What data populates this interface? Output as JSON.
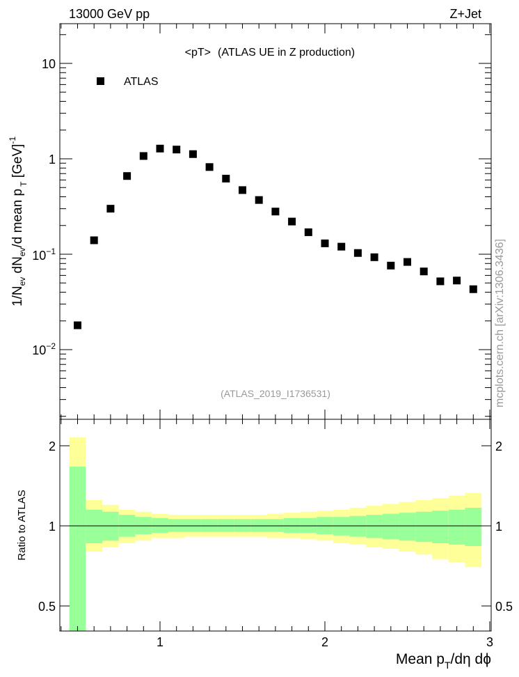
{
  "header": {
    "left": "13000 GeV pp",
    "right": "Z+Jet"
  },
  "main_plot": {
    "title_part1": "<pT>",
    "title_part2": "(ATLAS UE in Z production)",
    "ylabel": "1/N_ev dN_ev/d mean p_T [GeV]^-1",
    "analysis_tag": "(ATLAS_2019_I1736531)",
    "legend_label": "ATLAS",
    "y_tick_labels": [
      "10",
      "1",
      "10^-1",
      "10^-2"
    ]
  },
  "ratio_plot": {
    "ylabel": "Ratio to ATLAS",
    "y_tick_labels": [
      "2",
      "1",
      "0.5"
    ],
    "x_tick_labels": [
      "1",
      "2",
      "3"
    ],
    "xlabel": "Mean p_T/dη dϕ"
  },
  "watermark": "mcplots.cern.ch [arXiv:1306.3436]",
  "colors": {
    "marker": "#000000",
    "band_inner": "#99ff99",
    "band_outer": "#ffff99",
    "text_grey": "#999999"
  },
  "chart_data": {
    "type": "scatter",
    "title": "<pT> (ATLAS UE in Z production)",
    "xlabel": "Mean p_T/dη dϕ",
    "ylabel": "1/N_ev dN_ev/d mean p_T [GeV]^-1",
    "yscale": "log",
    "xlim": [
      0.4,
      3.0
    ],
    "ylim": [
      0.0015,
      25
    ],
    "series": [
      {
        "name": "ATLAS",
        "x": [
          0.5,
          0.6,
          0.7,
          0.8,
          0.9,
          1.0,
          1.1,
          1.2,
          1.3,
          1.4,
          1.5,
          1.6,
          1.7,
          1.8,
          1.9,
          2.0,
          2.1,
          2.2,
          2.3,
          2.4,
          2.5,
          2.6,
          2.7,
          2.8,
          2.9
        ],
        "y": [
          0.018,
          0.14,
          0.3,
          0.66,
          1.07,
          1.28,
          1.25,
          1.12,
          0.82,
          0.62,
          0.47,
          0.37,
          0.28,
          0.22,
          0.17,
          0.13,
          0.12,
          0.103,
          0.093,
          0.076,
          0.083,
          0.066,
          0.052,
          0.053,
          0.043
        ]
      }
    ],
    "ratio": {
      "ylabel": "Ratio to ATLAS",
      "yscale": "log",
      "ylim": [
        0.4,
        2.4
      ],
      "bin_edges": [
        0.45,
        0.55,
        0.65,
        0.75,
        0.85,
        0.95,
        1.05,
        1.15,
        1.25,
        1.35,
        1.45,
        1.55,
        1.65,
        1.75,
        1.85,
        1.95,
        2.05,
        2.15,
        2.25,
        2.35,
        2.45,
        2.55,
        2.65,
        2.75,
        2.85,
        2.95
      ],
      "inner_band": {
        "lower": [
          0.3,
          0.86,
          0.88,
          0.91,
          0.93,
          0.94,
          0.95,
          0.95,
          0.95,
          0.95,
          0.95,
          0.95,
          0.95,
          0.94,
          0.94,
          0.93,
          0.92,
          0.91,
          0.9,
          0.89,
          0.88,
          0.87,
          0.86,
          0.85,
          0.84
        ],
        "upper": [
          1.67,
          1.15,
          1.13,
          1.1,
          1.08,
          1.07,
          1.06,
          1.06,
          1.06,
          1.06,
          1.06,
          1.06,
          1.06,
          1.07,
          1.07,
          1.08,
          1.08,
          1.09,
          1.1,
          1.11,
          1.12,
          1.13,
          1.14,
          1.15,
          1.17
        ]
      },
      "outer_band": {
        "lower": [
          0.3,
          0.8,
          0.83,
          0.86,
          0.88,
          0.9,
          0.9,
          0.91,
          0.91,
          0.91,
          0.91,
          0.91,
          0.9,
          0.9,
          0.89,
          0.88,
          0.86,
          0.85,
          0.83,
          0.82,
          0.8,
          0.78,
          0.75,
          0.73,
          0.7
        ],
        "upper": [
          2.15,
          1.25,
          1.2,
          1.15,
          1.13,
          1.11,
          1.1,
          1.1,
          1.1,
          1.1,
          1.1,
          1.1,
          1.11,
          1.12,
          1.13,
          1.14,
          1.15,
          1.17,
          1.19,
          1.21,
          1.23,
          1.25,
          1.27,
          1.3,
          1.33
        ]
      },
      "reference_line": 1.0
    }
  }
}
